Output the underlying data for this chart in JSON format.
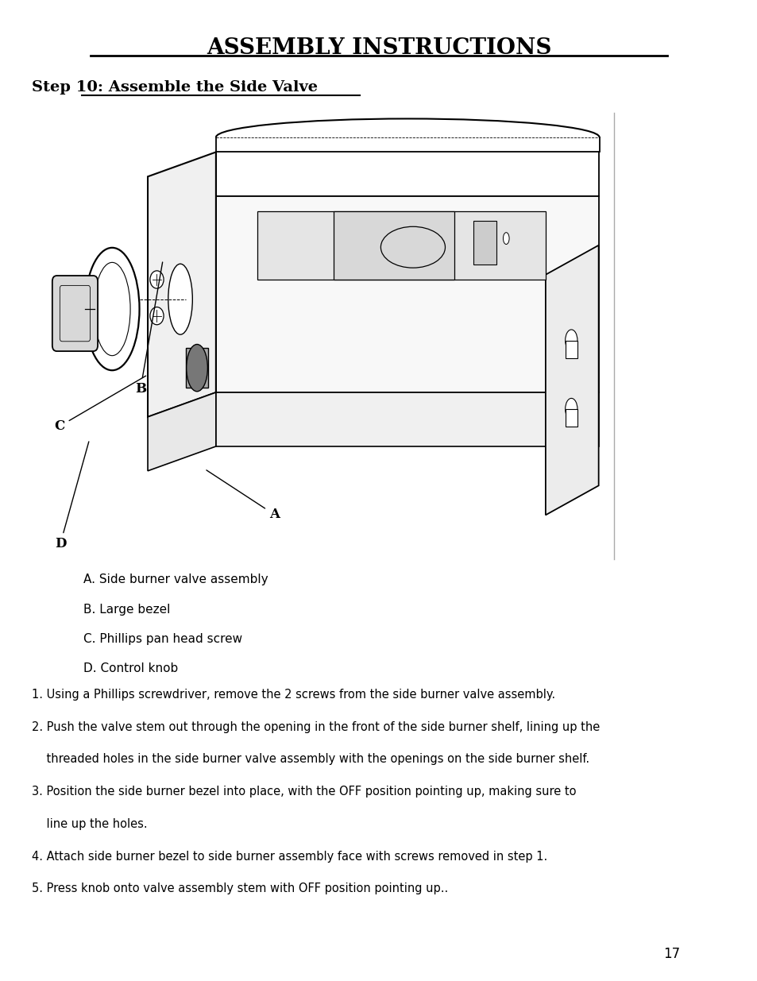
{
  "title": "ASSEMBLY INSTRUCTIONS",
  "step_title_prefix": "Step 10: ",
  "step_title_underlined": "Assemble the Side Valve",
  "legend": [
    "A. Side burner valve assembly",
    "B. Large bezel",
    "C. Phillips pan head screw",
    "D. Control knob"
  ],
  "line_texts": [
    "1. Using a Phillips screwdriver, remove the 2 screws from the side burner valve assembly.",
    "2. Push the valve stem out through the opening in the front of the side burner shelf, lining up the",
    "    threaded holes in the side burner valve assembly with the openings on the side burner shelf.",
    "3. Position the side burner bezel into place, with the OFF position pointing up, making sure to",
    "    line up the holes.",
    "4. Attach side burner bezel to side burner assembly face with screws removed in step 1.",
    "5. Press knob onto valve assembly stem with OFF position pointing up.."
  ],
  "page_number": "17",
  "bg_color": "#ffffff",
  "text_color": "#000000"
}
